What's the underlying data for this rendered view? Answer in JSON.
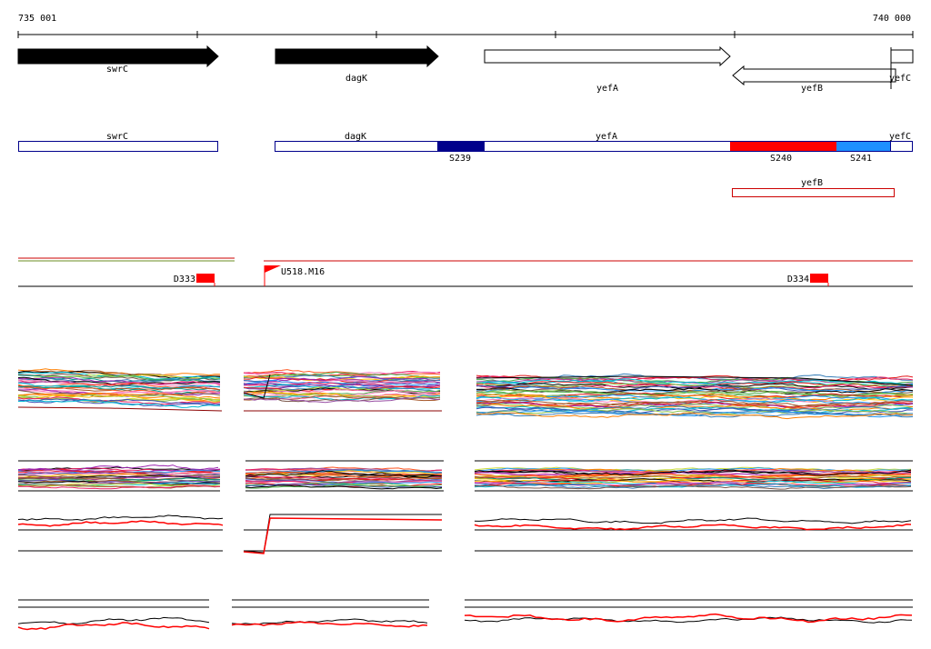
{
  "coordinates": {
    "start": "735 001",
    "end": "740 000"
  },
  "colors": {
    "gene_outline": "#000000",
    "segment_outline": "#00008b",
    "segment_dark_blue": "#00008b",
    "segment_red": "#ff0000",
    "segment_light_blue": "#1e90ff",
    "antisense_outline": "#cc0000",
    "feature_red": "#ff0000",
    "signal_black": "#000000",
    "signal_red": "#ff0000"
  },
  "genes": [
    {
      "name": "swrC",
      "strand": "forward",
      "style": "filled"
    },
    {
      "name": "dagK",
      "strand": "forward",
      "style": "filled"
    },
    {
      "name": "yefA",
      "strand": "forward",
      "style": "open"
    },
    {
      "name": "yefB",
      "strand": "reverse",
      "style": "open"
    },
    {
      "name": "yefC",
      "strand": "forward",
      "style": "open"
    }
  ],
  "segment_labels": {
    "transcripts": [
      "swrC",
      "dagK",
      "yefA",
      "yefC"
    ],
    "segments": [
      "S239",
      "S240",
      "S241"
    ],
    "antisense": "yefB"
  },
  "features": {
    "downstream": [
      "D333",
      "D334"
    ],
    "upstream": "U518.M16"
  },
  "icons": {
    "upstream_marker": "flag-icon"
  }
}
